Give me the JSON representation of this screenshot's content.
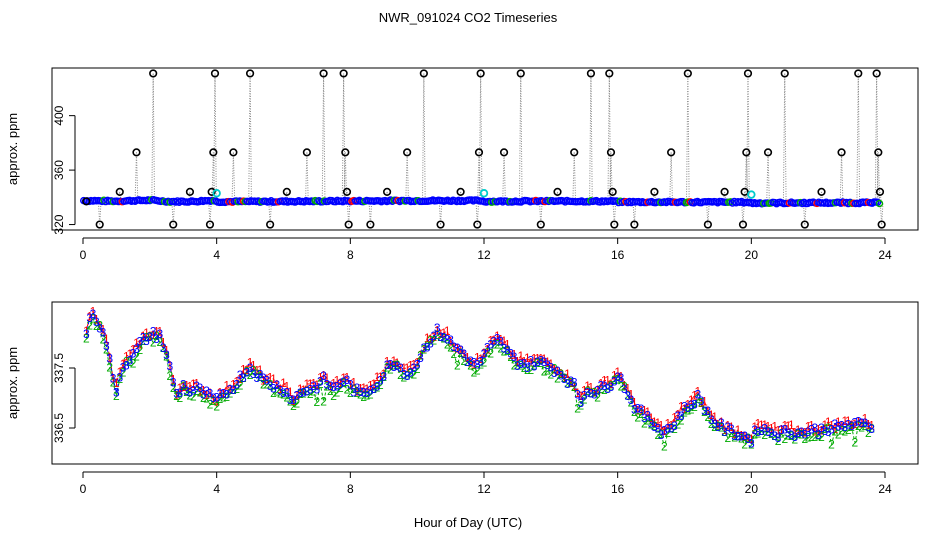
{
  "chart_data": [
    {
      "type": "scatter",
      "title": "NWR_091024  CO2 Timeseries",
      "xlabel": "",
      "ylabel": "approx. ppm",
      "xlim": [
        0,
        24
      ],
      "ylim": [
        316,
        435
      ],
      "x_ticks": [
        0,
        4,
        8,
        12,
        16,
        20,
        24
      ],
      "x_tick_labels": [
        "0",
        "4",
        "8",
        "12",
        "16",
        "20",
        "24"
      ],
      "y_ticks": [
        320,
        360,
        400
      ],
      "y_tick_labels": [
        "320",
        "360",
        "400"
      ],
      "baseline": [
        [
          0.0,
          337.6
        ],
        [
          1.0,
          337.2
        ],
        [
          2.0,
          337.9
        ],
        [
          2.6,
          336.9
        ],
        [
          3.3,
          337.0
        ],
        [
          3.9,
          337.8
        ],
        [
          4.0,
          336.8
        ],
        [
          6.0,
          337.0
        ],
        [
          8.0,
          337.3
        ],
        [
          9.5,
          337.5
        ],
        [
          11.9,
          337.6
        ],
        [
          12.0,
          337.0
        ],
        [
          14.0,
          337.2
        ],
        [
          15.9,
          337.1
        ],
        [
          16.0,
          336.6
        ],
        [
          19.9,
          336.4
        ],
        [
          20.0,
          335.8
        ],
        [
          22.0,
          336.0
        ],
        [
          23.8,
          336.0
        ]
      ],
      "spikes": [
        {
          "x": 0.1,
          "y": 337
        },
        {
          "x": 0.5,
          "y": 320
        },
        {
          "x": 1.1,
          "y": 344
        },
        {
          "x": 1.6,
          "y": 373
        },
        {
          "x": 2.1,
          "y": 431
        },
        {
          "x": 2.7,
          "y": 320
        },
        {
          "x": 3.2,
          "y": 344
        },
        {
          "x": 3.8,
          "y": 320
        },
        {
          "x": 3.85,
          "y": 344
        },
        {
          "x": 3.9,
          "y": 373
        },
        {
          "x": 3.95,
          "y": 431
        },
        {
          "x": 4.5,
          "y": 373
        },
        {
          "x": 5.0,
          "y": 431
        },
        {
          "x": 5.6,
          "y": 320
        },
        {
          "x": 6.1,
          "y": 344
        },
        {
          "x": 6.7,
          "y": 373
        },
        {
          "x": 7.2,
          "y": 431
        },
        {
          "x": 7.8,
          "y": 431
        },
        {
          "x": 7.85,
          "y": 373
        },
        {
          "x": 7.9,
          "y": 344
        },
        {
          "x": 7.95,
          "y": 320
        },
        {
          "x": 8.6,
          "y": 320
        },
        {
          "x": 9.1,
          "y": 344
        },
        {
          "x": 9.7,
          "y": 373
        },
        {
          "x": 10.2,
          "y": 431
        },
        {
          "x": 10.7,
          "y": 320
        },
        {
          "x": 11.3,
          "y": 344
        },
        {
          "x": 11.8,
          "y": 320
        },
        {
          "x": 11.85,
          "y": 373
        },
        {
          "x": 11.9,
          "y": 431
        },
        {
          "x": 12.6,
          "y": 373
        },
        {
          "x": 13.1,
          "y": 431
        },
        {
          "x": 13.7,
          "y": 320
        },
        {
          "x": 14.2,
          "y": 344
        },
        {
          "x": 14.7,
          "y": 373
        },
        {
          "x": 15.2,
          "y": 431
        },
        {
          "x": 15.75,
          "y": 431
        },
        {
          "x": 15.8,
          "y": 373
        },
        {
          "x": 15.85,
          "y": 344
        },
        {
          "x": 15.9,
          "y": 320
        },
        {
          "x": 16.5,
          "y": 320
        },
        {
          "x": 17.1,
          "y": 344
        },
        {
          "x": 17.6,
          "y": 373
        },
        {
          "x": 18.1,
          "y": 431
        },
        {
          "x": 18.7,
          "y": 320
        },
        {
          "x": 19.2,
          "y": 344
        },
        {
          "x": 19.75,
          "y": 320
        },
        {
          "x": 19.8,
          "y": 344
        },
        {
          "x": 19.85,
          "y": 373
        },
        {
          "x": 19.9,
          "y": 431
        },
        {
          "x": 20.5,
          "y": 373
        },
        {
          "x": 21.0,
          "y": 431
        },
        {
          "x": 21.6,
          "y": 320
        },
        {
          "x": 22.1,
          "y": 344
        },
        {
          "x": 22.7,
          "y": 373
        },
        {
          "x": 23.2,
          "y": 431
        },
        {
          "x": 23.75,
          "y": 431
        },
        {
          "x": 23.8,
          "y": 373
        },
        {
          "x": 23.85,
          "y": 344
        },
        {
          "x": 23.9,
          "y": 320
        }
      ],
      "highlights": [
        {
          "x": 4.0,
          "y": 343
        },
        {
          "x": 12.0,
          "y": 343
        },
        {
          "x": 20.0,
          "y": 342
        }
      ],
      "colors": {
        "baseline_points": "#0000ff",
        "baseline_overlay_green": "#00aa00",
        "baseline_overlay_red": "#ff0000",
        "spike_line": "#888888",
        "spike_marker": "#000000",
        "highlight_marker": "#00cccc"
      }
    },
    {
      "type": "line",
      "title": "",
      "xlabel": "Hour of Day (UTC)",
      "ylabel": "approx. ppm",
      "xlim": [
        0,
        24
      ],
      "ylim": [
        335.9,
        338.6
      ],
      "x_ticks": [
        0,
        4,
        8,
        12,
        16,
        20,
        24
      ],
      "x_tick_labels": [
        "0",
        "4",
        "8",
        "12",
        "16",
        "20",
        "24"
      ],
      "y_ticks": [
        336.5,
        337.5
      ],
      "y_tick_labels": [
        "336.5",
        "337.5"
      ],
      "series": [
        {
          "name": "1",
          "color": "#ff0000",
          "marker": "1"
        },
        {
          "name": "2",
          "color": "#00aa00",
          "marker": "2"
        },
        {
          "name": "3",
          "color": "#0000ff",
          "marker": "3"
        }
      ],
      "profile": [
        [
          0.1,
          338.1
        ],
        [
          0.3,
          338.45
        ],
        [
          0.5,
          338.2
        ],
        [
          0.7,
          337.9
        ],
        [
          0.9,
          337.3
        ],
        [
          1.0,
          337.15
        ],
        [
          1.2,
          337.55
        ],
        [
          1.5,
          337.7
        ],
        [
          1.7,
          337.9
        ],
        [
          1.9,
          338.0
        ],
        [
          2.1,
          338.05
        ],
        [
          2.3,
          338.05
        ],
        [
          2.6,
          337.5
        ],
        [
          2.8,
          337.05
        ],
        [
          3.0,
          337.2
        ],
        [
          3.2,
          337.1
        ],
        [
          3.4,
          337.15
        ],
        [
          3.7,
          337.05
        ],
        [
          4.0,
          336.95
        ],
        [
          4.2,
          337.05
        ],
        [
          4.5,
          337.2
        ],
        [
          4.8,
          337.4
        ],
        [
          5.0,
          337.5
        ],
        [
          5.2,
          337.4
        ],
        [
          5.4,
          337.3
        ],
        [
          5.7,
          337.2
        ],
        [
          6.0,
          337.15
        ],
        [
          6.3,
          336.95
        ],
        [
          6.5,
          337.1
        ],
        [
          6.8,
          337.15
        ],
        [
          7.0,
          337.2
        ],
        [
          7.2,
          337.3
        ],
        [
          7.5,
          337.15
        ],
        [
          7.8,
          337.3
        ],
        [
          8.0,
          337.2
        ],
        [
          8.3,
          337.05
        ],
        [
          8.6,
          337.15
        ],
        [
          8.9,
          337.3
        ],
        [
          9.1,
          337.5
        ],
        [
          9.4,
          337.6
        ],
        [
          9.6,
          337.4
        ],
        [
          9.9,
          337.5
        ],
        [
          10.1,
          337.7
        ],
        [
          10.3,
          337.9
        ],
        [
          10.6,
          338.1
        ],
        [
          10.9,
          338.0
        ],
        [
          11.1,
          337.85
        ],
        [
          11.3,
          337.8
        ],
        [
          11.5,
          337.65
        ],
        [
          11.7,
          337.55
        ],
        [
          11.9,
          337.6
        ],
        [
          12.1,
          337.8
        ],
        [
          12.4,
          337.95
        ],
        [
          12.6,
          337.85
        ],
        [
          12.8,
          337.7
        ],
        [
          13.0,
          337.6
        ],
        [
          13.3,
          337.55
        ],
        [
          13.6,
          337.6
        ],
        [
          13.9,
          337.55
        ],
        [
          14.2,
          337.45
        ],
        [
          14.5,
          337.3
        ],
        [
          14.7,
          337.2
        ],
        [
          14.9,
          336.95
        ],
        [
          15.1,
          337.15
        ],
        [
          15.3,
          337.1
        ],
        [
          15.5,
          337.15
        ],
        [
          15.8,
          337.25
        ],
        [
          16.0,
          337.4
        ],
        [
          16.2,
          337.2
        ],
        [
          16.4,
          336.95
        ],
        [
          16.6,
          336.8
        ],
        [
          16.8,
          336.7
        ],
        [
          17.0,
          336.6
        ],
        [
          17.3,
          336.45
        ],
        [
          17.6,
          336.5
        ],
        [
          17.9,
          336.75
        ],
        [
          18.2,
          336.9
        ],
        [
          18.4,
          337.0
        ],
        [
          18.6,
          336.85
        ],
        [
          18.8,
          336.65
        ],
        [
          19.0,
          336.55
        ],
        [
          19.3,
          336.45
        ],
        [
          19.6,
          336.4
        ],
        [
          19.8,
          336.35
        ],
        [
          20.0,
          336.3
        ],
        [
          20.2,
          336.5
        ],
        [
          20.5,
          336.45
        ],
        [
          20.8,
          336.4
        ],
        [
          21.1,
          336.45
        ],
        [
          21.4,
          336.4
        ],
        [
          21.7,
          336.45
        ],
        [
          22.0,
          336.45
        ],
        [
          22.3,
          336.5
        ],
        [
          22.6,
          336.5
        ],
        [
          22.9,
          336.55
        ],
        [
          23.2,
          336.55
        ],
        [
          23.5,
          336.55
        ],
        [
          23.7,
          336.5
        ]
      ]
    }
  ]
}
